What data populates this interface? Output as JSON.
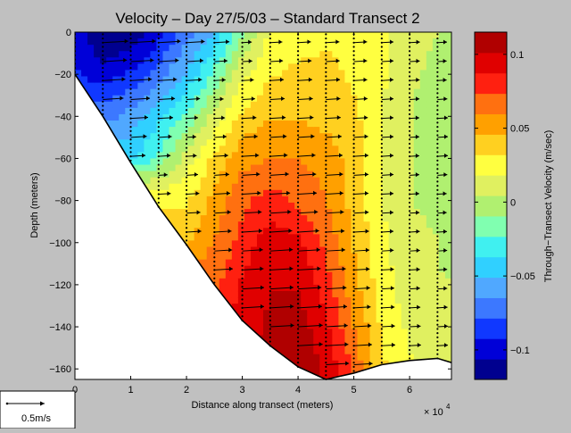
{
  "chart_data": {
    "type": "heatmap",
    "title": "Velocity – Day 27/5/03 – Standard Transect 2",
    "xlabel": "Distance along transect (meters)",
    "ylabel": "Depth (meters)",
    "x_exponent_label": "× 10",
    "x_exponent": "4",
    "xlim": [
      0,
      6.75
    ],
    "ylim": [
      -165,
      0
    ],
    "x_ticks": [
      0,
      1,
      2,
      3,
      4,
      5,
      6
    ],
    "y_ticks": [
      0,
      -20,
      -40,
      -60,
      -80,
      -100,
      -120,
      -140,
      -160
    ],
    "colorbar": {
      "label": "Through−Transect Velocity (m/sec)",
      "range": [
        -0.12,
        0.115
      ],
      "ticks": [
        0.1,
        0.05,
        0,
        -0.05,
        -0.1
      ],
      "tick_labels": [
        "0.1",
        "0.05",
        "0",
        "−0.05",
        "−0.1"
      ],
      "colors": [
        "#00008f",
        "#0000d8",
        "#1038ff",
        "#3c78ff",
        "#50a8ff",
        "#30d0ff",
        "#40f0f0",
        "#80ffb0",
        "#b0f070",
        "#e0f060",
        "#ffff40",
        "#ffd020",
        "#ffa000",
        "#ff7010",
        "#ff2010",
        "#e00000",
        "#b00000"
      ]
    },
    "bottom_profile": [
      [
        0,
        -20
      ],
      [
        0.5,
        -40
      ],
      [
        1,
        -62
      ],
      [
        1.5,
        -83
      ],
      [
        2,
        -101
      ],
      [
        2.5,
        -120
      ],
      [
        3,
        -137
      ],
      [
        3.5,
        -149
      ],
      [
        4,
        -159
      ],
      [
        4.5,
        -165
      ],
      [
        5,
        -162
      ],
      [
        5.5,
        -158
      ],
      [
        6,
        -156
      ],
      [
        6.5,
        -155
      ],
      [
        6.75,
        -157
      ]
    ],
    "velocity_field": {
      "x": [
        0,
        0.5,
        1,
        1.5,
        2,
        2.5,
        3,
        3.5,
        4,
        4.5,
        5,
        5.5,
        6,
        6.5,
        6.75
      ],
      "depth": [
        0,
        -20,
        -40,
        -60,
        -80,
        -100,
        -120,
        -140,
        -160
      ],
      "v": [
        [
          -0.1,
          -0.12,
          -0.12,
          -0.1,
          -0.07,
          -0.05,
          -0.01,
          0.02,
          0.025,
          0.03,
          0.03,
          0.02,
          0.01,
          0.005,
          0.0
        ],
        [
          -0.09,
          -0.1,
          -0.09,
          -0.07,
          -0.05,
          -0.02,
          0.015,
          0.03,
          0.035,
          0.035,
          0.03,
          0.02,
          0.008,
          0.0,
          0.0
        ],
        [
          null,
          -0.07,
          -0.06,
          -0.04,
          -0.02,
          0.01,
          0.035,
          0.045,
          0.045,
          0.04,
          0.035,
          0.02,
          0.005,
          -0.01,
          0.0
        ],
        [
          null,
          null,
          -0.04,
          -0.02,
          0.01,
          0.035,
          0.055,
          0.06,
          0.06,
          0.055,
          0.04,
          0.02,
          0.005,
          -0.01,
          0.0
        ],
        [
          null,
          null,
          null,
          null,
          0.03,
          0.05,
          0.07,
          0.08,
          0.07,
          0.06,
          0.04,
          0.02,
          0.005,
          0.0,
          0.0
        ],
        [
          null,
          null,
          null,
          null,
          0.045,
          0.06,
          0.08,
          0.095,
          0.09,
          0.07,
          0.045,
          0.02,
          0.01,
          0.005,
          0.0
        ],
        [
          null,
          null,
          null,
          null,
          null,
          0.07,
          0.09,
          0.1,
          0.1,
          0.08,
          0.05,
          0.025,
          0.01,
          0.005,
          0.005
        ],
        [
          null,
          null,
          null,
          null,
          null,
          null,
          0.09,
          0.105,
          0.11,
          0.09,
          0.06,
          0.03,
          0.015,
          0.01,
          0.005
        ],
        [
          null,
          null,
          null,
          null,
          null,
          null,
          null,
          null,
          0.11,
          0.1,
          0.07,
          0.035,
          0.02,
          0.01,
          0.005
        ]
      ]
    },
    "arrow_scale": {
      "label": "0.5m/s",
      "value": 0.5
    }
  }
}
